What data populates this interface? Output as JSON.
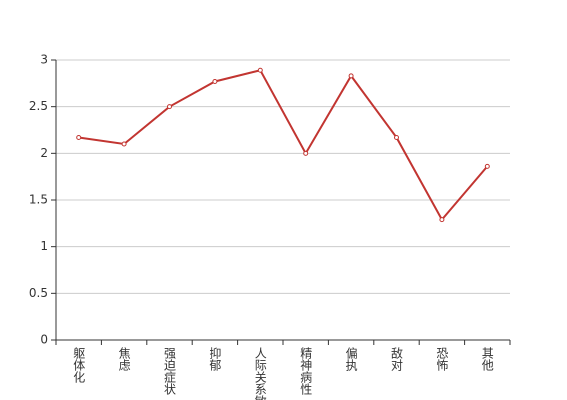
{
  "chart_data": {
    "type": "line",
    "categories": [
      "躯体化",
      "焦虑",
      "强迫症状",
      "抑郁",
      "人际关系敏感",
      "精神病性",
      "偏执",
      "敌对",
      "恐怖",
      "其他"
    ],
    "values": [
      2.17,
      2.1,
      2.5,
      2.77,
      2.89,
      2.0,
      2.83,
      2.17,
      1.29,
      1.86
    ],
    "color": "#c23531",
    "ylim": [
      0,
      3
    ],
    "yticks": [
      0,
      0.5,
      1,
      1.5,
      2,
      2.5,
      3
    ],
    "grid": true
  }
}
